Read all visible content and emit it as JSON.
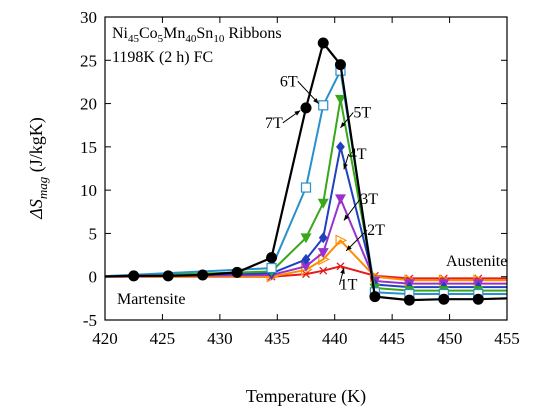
{
  "chart_data": {
    "type": "line",
    "title_line1_parts": [
      "Ni",
      "45",
      "Co",
      "5",
      "Mn",
      "40",
      "Sn",
      "10",
      " Ribbons"
    ],
    "title_line2": "1198K (2 h) FC",
    "xlabel": "Temperature (K)",
    "ylabel_parts": [
      "ΔS",
      "mag",
      " (J/kgK)"
    ],
    "xlim": [
      420,
      455
    ],
    "ylim": [
      -5,
      30
    ],
    "xticks": [
      420,
      425,
      430,
      435,
      440,
      445,
      450,
      455
    ],
    "yticks": [
      -5,
      0,
      5,
      10,
      15,
      20,
      25,
      30
    ],
    "grid": false,
    "phase_labels": {
      "left": "Martensite",
      "right": "Austenite"
    },
    "series": [
      {
        "name": "1T",
        "color": "#e41a1c",
        "marker": "x",
        "x": [
          419,
          434.5,
          437.5,
          439,
          440.5,
          443.5,
          446.5,
          449.5,
          452.5,
          455
        ],
        "y": [
          0,
          0,
          0.3,
          0.7,
          1.2,
          0.1,
          -0.2,
          -0.2,
          -0.2,
          -0.2
        ]
      },
      {
        "name": "2T",
        "color": "#ff8c00",
        "marker": "triangle-right-open",
        "x": [
          419,
          434.5,
          437.5,
          439,
          440.5,
          443.5,
          446.5,
          449.5,
          452.5,
          455
        ],
        "y": [
          0,
          0,
          0.8,
          2,
          4.2,
          0,
          -0.4,
          -0.4,
          -0.4,
          -0.4
        ]
      },
      {
        "name": "3T",
        "color": "#9932cc",
        "marker": "triangle-down",
        "x": [
          419,
          434.5,
          437.5,
          439,
          440.5,
          443.5,
          446.5,
          449.5,
          452.5,
          455
        ],
        "y": [
          0,
          0.2,
          1.2,
          2.8,
          9,
          -0.5,
          -0.8,
          -0.8,
          -0.8,
          -0.8
        ]
      },
      {
        "name": "4T",
        "color": "#2040c0",
        "marker": "diamond",
        "x": [
          419,
          434.5,
          437.5,
          439,
          440.5,
          443.5,
          446.5,
          449.5,
          452.5,
          455
        ],
        "y": [
          0,
          0.4,
          2,
          4.5,
          15,
          -0.9,
          -1.2,
          -1.2,
          -1.2,
          -1.2
        ]
      },
      {
        "name": "5T",
        "color": "#3aa61a",
        "marker": "triangle-down",
        "x": [
          419,
          434.5,
          437.5,
          439,
          440.5,
          443.5,
          446.5,
          449.5,
          452.5,
          455
        ],
        "y": [
          0,
          0.6,
          4.5,
          8.5,
          20.5,
          -1.3,
          -1.6,
          -1.6,
          -1.6,
          -1.6
        ]
      },
      {
        "name": "6T",
        "color": "#2a90cc",
        "marker": "square-open",
        "x": [
          419,
          434.5,
          437.5,
          439,
          440.5,
          443.5,
          446.5,
          449.5,
          452.5,
          455
        ],
        "y": [
          0,
          1,
          10.3,
          19.8,
          23.8,
          -1.8,
          -2,
          -2,
          -2,
          -2
        ]
      },
      {
        "name": "7T",
        "color": "#000000",
        "marker": "circle",
        "x": [
          419,
          422.5,
          425.5,
          428.5,
          431.5,
          434.5,
          437.5,
          439,
          440.5,
          443.5,
          446.5,
          449.5,
          452.5,
          455
        ],
        "y": [
          0,
          0.1,
          0.1,
          0.2,
          0.5,
          2.2,
          19.5,
          27,
          24.5,
          -2.3,
          -2.7,
          -2.6,
          -2.6,
          -2.5
        ]
      }
    ],
    "annotations": [
      {
        "text": "7T",
        "x": 434.7,
        "y": 17.2,
        "ax": 437.0,
        "ay": 19.2
      },
      {
        "text": "6T",
        "x": 436.0,
        "y": 22.0,
        "ax": 438.6,
        "ay": 20.0
      },
      {
        "text": "5T",
        "x": 442.4,
        "y": 18.4,
        "ax": 440.5,
        "ay": 17.2
      },
      {
        "text": "4T",
        "x": 442.0,
        "y": 13.6,
        "ax": 440.8,
        "ay": 12.4
      },
      {
        "text": "3T",
        "x": 443.0,
        "y": 8.4,
        "ax": 440.8,
        "ay": 6.5
      },
      {
        "text": "2T",
        "x": 443.6,
        "y": 4.8,
        "ax": 441.0,
        "ay": 3.0
      },
      {
        "text": "1T",
        "x": 441.2,
        "y": -1.5,
        "ax": 440.8,
        "ay": 1.0
      }
    ]
  }
}
